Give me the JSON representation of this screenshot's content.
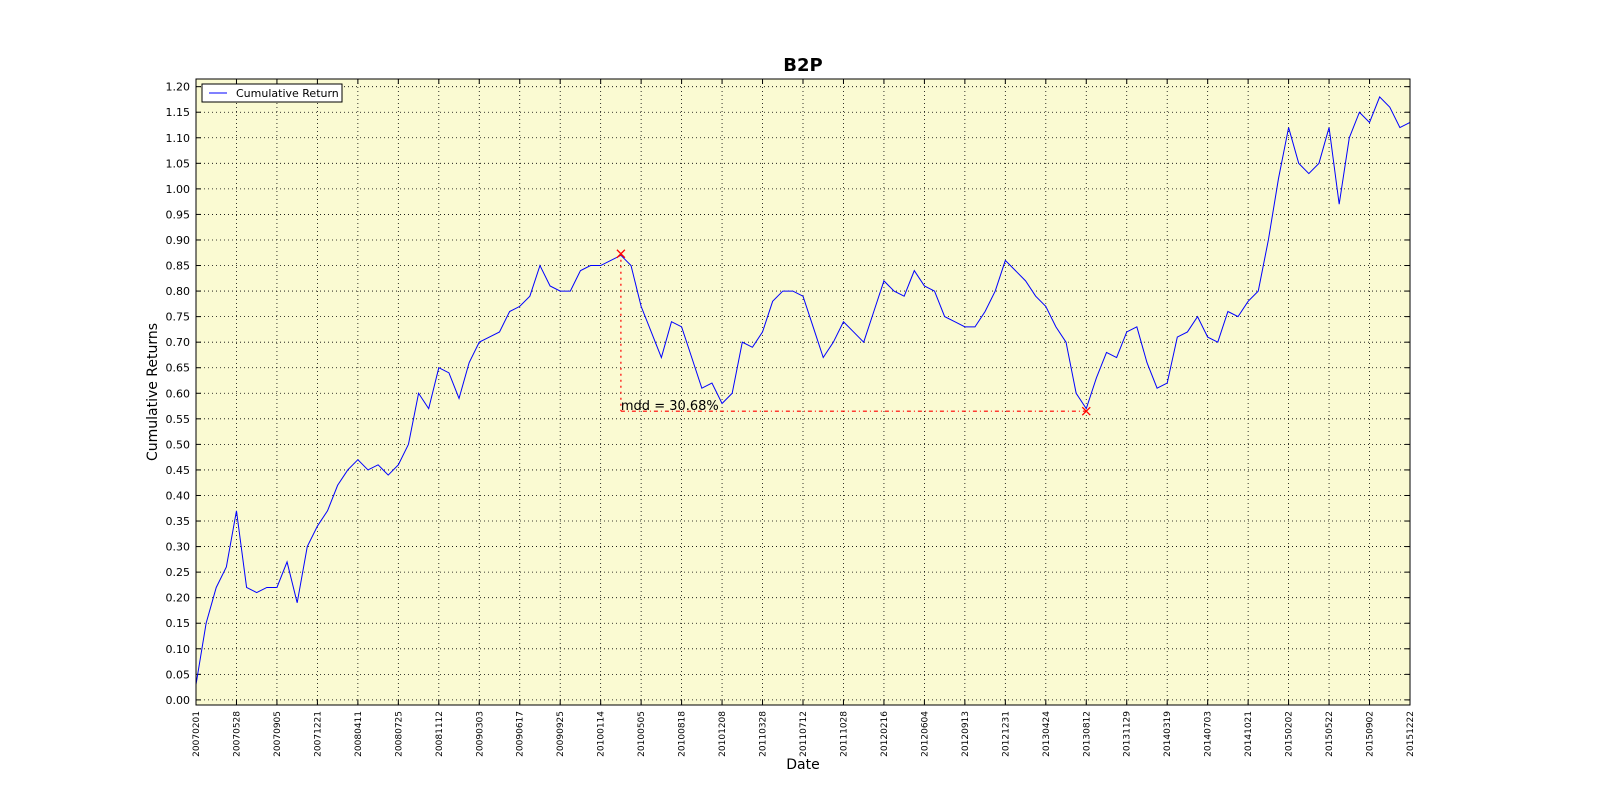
{
  "chart_data": {
    "type": "line",
    "title": "B2P",
    "xlabel": "Date",
    "ylabel": "Cumulative Returns",
    "background": "#fafad2",
    "grid": true,
    "legend": "upper left",
    "xlim": [
      0,
      2400
    ],
    "ylim": [
      -0.01,
      1.215
    ],
    "xticks": [
      {
        "value": 0,
        "label": "20070201"
      },
      {
        "value": 80,
        "label": "20070528"
      },
      {
        "value": 160,
        "label": "20070905"
      },
      {
        "value": 240,
        "label": "20071221"
      },
      {
        "value": 320,
        "label": "20080411"
      },
      {
        "value": 400,
        "label": "20080725"
      },
      {
        "value": 480,
        "label": "20081112"
      },
      {
        "value": 560,
        "label": "20090303"
      },
      {
        "value": 640,
        "label": "20090617"
      },
      {
        "value": 720,
        "label": "20090925"
      },
      {
        "value": 800,
        "label": "20100114"
      },
      {
        "value": 880,
        "label": "20100505"
      },
      {
        "value": 960,
        "label": "20100818"
      },
      {
        "value": 1040,
        "label": "20101208"
      },
      {
        "value": 1120,
        "label": "20110328"
      },
      {
        "value": 1200,
        "label": "20110712"
      },
      {
        "value": 1280,
        "label": "20111028"
      },
      {
        "value": 1360,
        "label": "20120216"
      },
      {
        "value": 1440,
        "label": "20120604"
      },
      {
        "value": 1520,
        "label": "20120913"
      },
      {
        "value": 1600,
        "label": "20121231"
      },
      {
        "value": 1680,
        "label": "20130424"
      },
      {
        "value": 1760,
        "label": "20130812"
      },
      {
        "value": 1840,
        "label": "20131129"
      },
      {
        "value": 1920,
        "label": "20140319"
      },
      {
        "value": 2000,
        "label": "20140703"
      },
      {
        "value": 2080,
        "label": "20141021"
      },
      {
        "value": 2160,
        "label": "20150202"
      },
      {
        "value": 2240,
        "label": "20150522"
      },
      {
        "value": 2320,
        "label": "20150902"
      },
      {
        "value": 2400,
        "label": "20151222"
      }
    ],
    "yticks": [
      {
        "value": 0,
        "label": "0.00"
      },
      {
        "value": 0.05,
        "label": "0.05"
      },
      {
        "value": 0.1,
        "label": "0.10"
      },
      {
        "value": 0.15,
        "label": "0.15"
      },
      {
        "value": 0.2,
        "label": "0.20"
      },
      {
        "value": 0.25,
        "label": "0.25"
      },
      {
        "value": 0.3,
        "label": "0.30"
      },
      {
        "value": 0.35,
        "label": "0.35"
      },
      {
        "value": 0.4,
        "label": "0.40"
      },
      {
        "value": 0.45,
        "label": "0.45"
      },
      {
        "value": 0.5,
        "label": "0.50"
      },
      {
        "value": 0.55,
        "label": "0.55"
      },
      {
        "value": 0.6,
        "label": "0.60"
      },
      {
        "value": 0.65,
        "label": "0.65"
      },
      {
        "value": 0.7,
        "label": "0.70"
      },
      {
        "value": 0.75,
        "label": "0.75"
      },
      {
        "value": 0.8,
        "label": "0.80"
      },
      {
        "value": 0.85,
        "label": "0.85"
      },
      {
        "value": 0.9,
        "label": "0.90"
      },
      {
        "value": 0.95,
        "label": "0.95"
      },
      {
        "value": 1,
        "label": "1.00"
      },
      {
        "value": 1.05,
        "label": "1.05"
      },
      {
        "value": 1.1,
        "label": "1.10"
      },
      {
        "value": 1.15,
        "label": "1.15"
      },
      {
        "value": 1.2,
        "label": "1.20"
      }
    ],
    "x": [
      0,
      20,
      40,
      60,
      80,
      100,
      120,
      140,
      160,
      180,
      200,
      220,
      240,
      260,
      280,
      300,
      320,
      340,
      360,
      380,
      400,
      420,
      440,
      460,
      480,
      500,
      520,
      540,
      560,
      580,
      600,
      620,
      640,
      660,
      680,
      700,
      720,
      740,
      760,
      780,
      800,
      820,
      840,
      860,
      880,
      900,
      920,
      940,
      960,
      980,
      1000,
      1020,
      1040,
      1060,
      1080,
      1100,
      1120,
      1140,
      1160,
      1180,
      1200,
      1220,
      1240,
      1260,
      1280,
      1300,
      1320,
      1340,
      1360,
      1380,
      1400,
      1420,
      1440,
      1460,
      1480,
      1500,
      1520,
      1540,
      1560,
      1580,
      1600,
      1620,
      1640,
      1660,
      1680,
      1700,
      1720,
      1740,
      1760,
      1780,
      1800,
      1820,
      1840,
      1860,
      1880,
      1900,
      1920,
      1940,
      1960,
      1980,
      2000,
      2020,
      2040,
      2060,
      2080,
      2100,
      2120,
      2140,
      2160,
      2180,
      2200,
      2220,
      2240,
      2260,
      2280,
      2300,
      2320,
      2340,
      2360,
      2380,
      2400
    ],
    "series": [
      {
        "name": "Cumulative Return",
        "color": "#0000ff",
        "values": [
          0.03,
          0.15,
          0.22,
          0.26,
          0.37,
          0.22,
          0.21,
          0.22,
          0.22,
          0.27,
          0.19,
          0.3,
          0.34,
          0.37,
          0.42,
          0.45,
          0.47,
          0.45,
          0.46,
          0.44,
          0.46,
          0.5,
          0.6,
          0.57,
          0.65,
          0.64,
          0.59,
          0.66,
          0.7,
          0.71,
          0.72,
          0.76,
          0.77,
          0.79,
          0.85,
          0.81,
          0.8,
          0.8,
          0.84,
          0.85,
          0.85,
          0.86,
          0.87,
          0.85,
          0.77,
          0.72,
          0.67,
          0.74,
          0.73,
          0.67,
          0.61,
          0.62,
          0.58,
          0.6,
          0.7,
          0.69,
          0.72,
          0.78,
          0.8,
          0.8,
          0.79,
          0.73,
          0.67,
          0.7,
          0.74,
          0.72,
          0.7,
          0.76,
          0.82,
          0.8,
          0.79,
          0.84,
          0.81,
          0.8,
          0.75,
          0.74,
          0.73,
          0.73,
          0.76,
          0.8,
          0.86,
          0.84,
          0.82,
          0.79,
          0.77,
          0.73,
          0.7,
          0.6,
          0.57,
          0.63,
          0.68,
          0.67,
          0.72,
          0.73,
          0.66,
          0.61,
          0.62,
          0.71,
          0.72,
          0.75,
          0.71,
          0.7,
          0.76,
          0.75,
          0.78,
          0.8,
          0.9,
          1.02,
          1.12,
          1.05,
          1.03,
          1.05,
          1.12,
          0.97,
          1.1,
          1.15,
          1.13,
          1.18,
          1.16,
          1.12,
          1.13
        ]
      }
    ],
    "drawdown": {
      "label": "mdd = 30.68%",
      "color": "#ff0000",
      "peak": {
        "x": 840,
        "y": 0.873
      },
      "trough": {
        "x": 1760,
        "y": 0.565
      }
    }
  }
}
